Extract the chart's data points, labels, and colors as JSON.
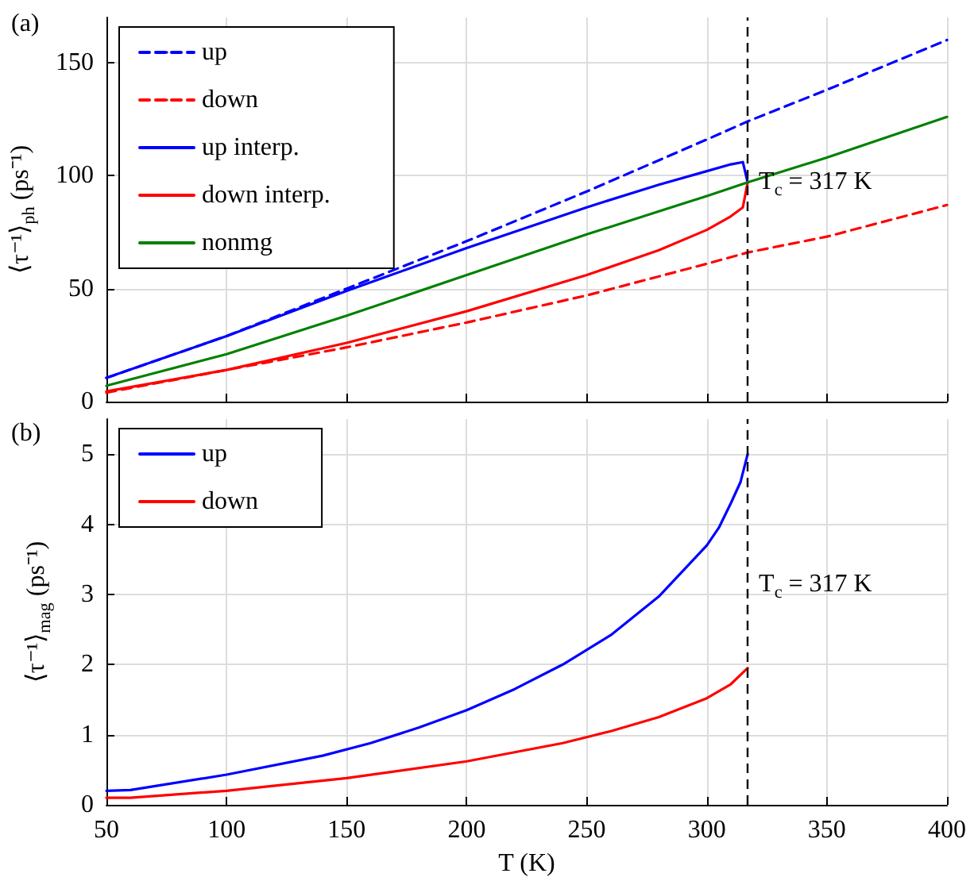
{
  "chart_data": [
    {
      "type": "line",
      "title": "(a)",
      "ylabel": "⟨τ⁻¹⟩$_{ph}$ (ps⁻¹)",
      "xlim": [
        50,
        400
      ],
      "xticks": [
        50,
        100,
        150,
        200,
        250,
        300,
        350,
        400
      ],
      "ylim": [
        0,
        170
      ],
      "yticks": [
        0,
        50,
        100,
        150
      ],
      "tick_labels": "y",
      "grid": true,
      "legend": "top left",
      "marker": "none",
      "series": [
        {
          "name": "up",
          "color": "#0000ff",
          "line_style": "dashed",
          "x": [
            50,
            100,
            150,
            200,
            250,
            300,
            317,
            350,
            400
          ],
          "values": [
            10.5,
            29,
            50,
            71,
            93,
            116,
            124,
            138,
            160
          ]
        },
        {
          "name": "down",
          "color": "#ff0000",
          "line_style": "dashed",
          "x": [
            50,
            100,
            150,
            200,
            250,
            300,
            317,
            350,
            400
          ],
          "values": [
            4,
            14,
            24,
            35,
            47,
            61,
            66,
            73,
            87
          ]
        },
        {
          "name": "up interp.",
          "color": "#0000ff",
          "line_style": "solid",
          "x": [
            50,
            100,
            150,
            200,
            250,
            280,
            300,
            310,
            315,
            317
          ],
          "values": [
            10.5,
            29,
            49,
            68,
            86,
            96,
            102,
            105,
            106,
            97
          ]
        },
        {
          "name": "down interp.",
          "color": "#ff0000",
          "line_style": "solid",
          "x": [
            50,
            100,
            150,
            200,
            250,
            280,
            300,
            310,
            315,
            317
          ],
          "values": [
            4.5,
            14,
            26,
            40,
            56,
            67,
            76,
            82,
            86,
            97
          ]
        },
        {
          "name": "nonmg",
          "color": "#008000",
          "line_style": "solid",
          "x": [
            50,
            100,
            150,
            200,
            250,
            300,
            317,
            350,
            400
          ],
          "values": [
            7,
            21,
            38,
            56,
            74,
            91,
            97,
            108,
            126
          ]
        }
      ],
      "ref_lines": [
        {
          "axis": "x",
          "value": 317,
          "label": "T$_{c}$ = 317 K",
          "color": "#000000",
          "line_style": "dashed"
        }
      ]
    },
    {
      "type": "line",
      "title": "(b)",
      "xlabel": "T (K)",
      "ylabel": "⟨τ⁻¹⟩$_{mag}$ (ps⁻¹)",
      "xlim": [
        50,
        400
      ],
      "xticks": [
        50,
        100,
        150,
        200,
        250,
        300,
        350,
        400
      ],
      "ylim": [
        0,
        5.5
      ],
      "yticks": [
        0,
        1,
        2,
        3,
        4,
        5
      ],
      "grid": true,
      "legend": "top left",
      "marker": "none",
      "series": [
        {
          "name": "up",
          "color": "#0000ff",
          "line_style": "solid",
          "x": [
            50,
            60,
            100,
            140,
            160,
            180,
            200,
            220,
            240,
            260,
            280,
            300,
            305,
            310,
            314,
            317
          ],
          "values": [
            0.2,
            0.21,
            0.43,
            0.7,
            0.88,
            1.1,
            1.35,
            1.65,
            2.0,
            2.42,
            2.97,
            3.7,
            3.95,
            4.3,
            4.6,
            5.0
          ]
        },
        {
          "name": "down",
          "color": "#ff0000",
          "line_style": "solid",
          "x": [
            50,
            60,
            100,
            150,
            200,
            240,
            260,
            280,
            300,
            310,
            317
          ],
          "values": [
            0.1,
            0.1,
            0.2,
            0.38,
            0.62,
            0.88,
            1.05,
            1.25,
            1.52,
            1.72,
            1.95
          ]
        }
      ],
      "ref_lines": [
        {
          "axis": "x",
          "value": 317,
          "label": "T$_{c}$ = 317 K",
          "color": "#000000",
          "line_style": "dashed"
        }
      ]
    }
  ]
}
